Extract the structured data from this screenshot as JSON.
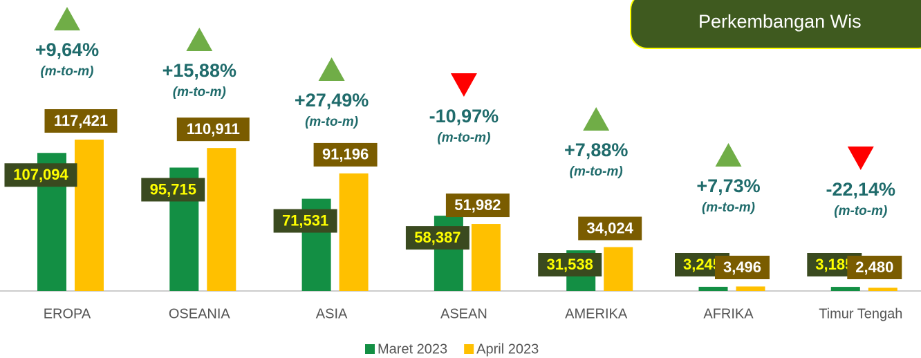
{
  "chart_data": {
    "type": "bar",
    "title": "Perkembangan Wis",
    "categories": [
      "EROPA",
      "OSEANIA",
      "ASIA",
      "ASEAN",
      "AMERIKA",
      "AFRIKA",
      "Timur Tengah"
    ],
    "series": [
      {
        "name": "Maret 2023",
        "color": "#138f44",
        "values": [
          107094,
          95715,
          71531,
          58387,
          31538,
          3245,
          3185
        ],
        "value_labels": [
          "107,094",
          "95,715",
          "71,531",
          "58,387",
          "31,538",
          "3,245",
          "3,185"
        ]
      },
      {
        "name": "April 2023",
        "color": "#ffc000",
        "values": [
          117421,
          110911,
          91196,
          51982,
          34024,
          3496,
          2480
        ],
        "value_labels": [
          "117,421",
          "110,911",
          "91,196",
          "51,982",
          "34,024",
          "3,496",
          "2,480"
        ]
      }
    ],
    "annotations": [
      {
        "label": "+9,64%",
        "note": "(m-to-m)"
      },
      {
        "label": "+15,88%",
        "note": "(m-to-m)"
      },
      {
        "label": "+27,49%",
        "note": "(m-to-m)"
      },
      {
        "label": "-10,97%",
        "note": "(m-to-m)"
      },
      {
        "label": "+7,88%",
        "note": "(m-to-m)"
      },
      {
        "label": "+7,73%",
        "note": "(m-to-m)"
      },
      {
        "label": "-22,14%",
        "note": "(m-to-m)"
      }
    ],
    "legend": "bottom"
  }
}
